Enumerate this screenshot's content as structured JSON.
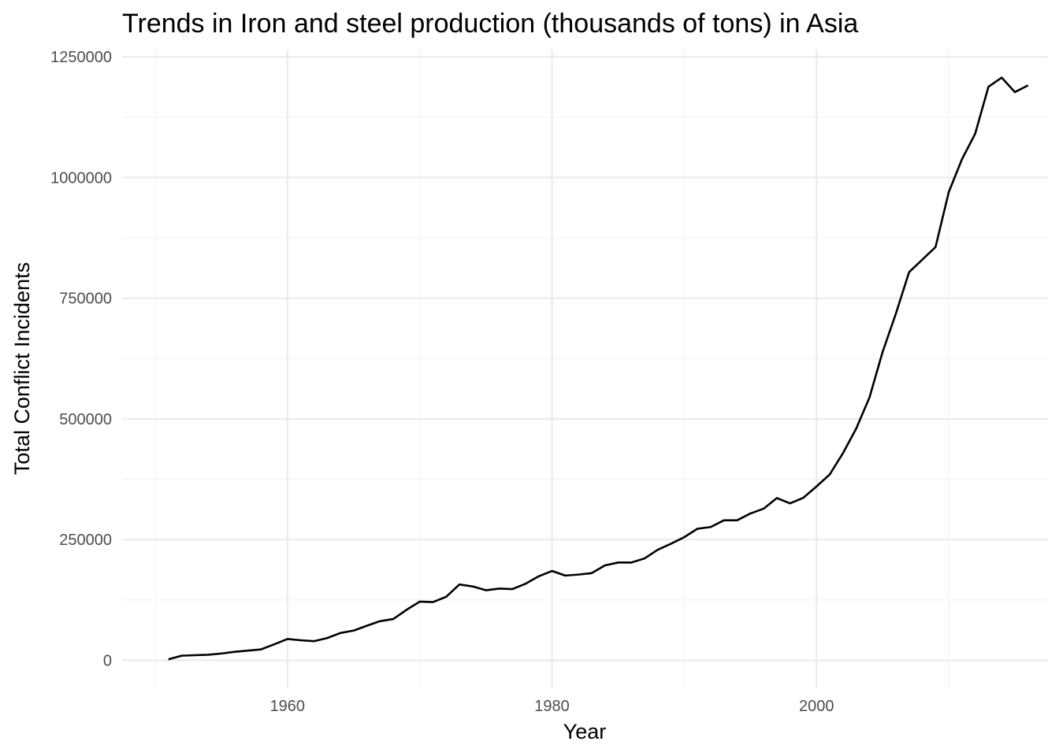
{
  "chart_data": {
    "type": "line",
    "title": "Trends in Iron and steel production (thousands of tons) in Asia",
    "xlabel": "Year",
    "ylabel": "Total Conflict Incidents",
    "xlim": [
      1947.5,
      2017.5
    ],
    "ylim": [
      -58000,
      1265000
    ],
    "x_ticks": [
      1960,
      1980,
      2000
    ],
    "x_tick_labels": [
      "1960",
      "1980",
      "2000"
    ],
    "x_minor_ticks": [
      1950,
      1970,
      1990,
      2010
    ],
    "y_ticks": [
      0,
      250000,
      500000,
      750000,
      1000000,
      1250000
    ],
    "y_tick_labels": [
      "0",
      "250000",
      "500000",
      "750000",
      "1000000",
      "1250000"
    ],
    "y_minor_ticks": [
      125000,
      375000,
      625000,
      875000,
      1125000
    ],
    "grid": true,
    "line_color": "#000000",
    "series": [
      {
        "x": [
          1951,
          1952,
          1953,
          1954,
          1955,
          1956,
          1957,
          1958,
          1959,
          1960,
          1961,
          1962,
          1963,
          1964,
          1965,
          1966,
          1967,
          1968,
          1969,
          1970,
          1971,
          1972,
          1973,
          1974,
          1975,
          1976,
          1977,
          1978,
          1979,
          1980,
          1981,
          1982,
          1983,
          1984,
          1985,
          1986,
          1987,
          1988,
          1989,
          1990,
          1991,
          1992,
          1993,
          1994,
          1995,
          1996,
          1997,
          1998,
          1999,
          2000,
          2001,
          2002,
          2003,
          2004,
          2005,
          2006,
          2007,
          2008,
          2009,
          2010,
          2011,
          2012,
          2013,
          2014,
          2015,
          2016
        ],
        "y": [
          2000,
          9500,
          10500,
          11500,
          14000,
          17500,
          20000,
          22500,
          33000,
          44000,
          41500,
          39500,
          46000,
          56500,
          61500,
          71500,
          81000,
          85500,
          104500,
          121500,
          120500,
          131500,
          157000,
          153000,
          145000,
          148500,
          147500,
          158500,
          174000,
          185000,
          175500,
          177500,
          180500,
          196500,
          202500,
          202500,
          211000,
          229000,
          241500,
          255000,
          272500,
          276000,
          290000,
          290000,
          304000,
          314000,
          336000,
          325000,
          336500,
          360000,
          385000,
          429000,
          480000,
          544000,
          639000,
          718000,
          804000,
          830000,
          856000,
          970000,
          1038000,
          1091000,
          1188000,
          1207000,
          1177000,
          1191000
        ]
      }
    ]
  }
}
